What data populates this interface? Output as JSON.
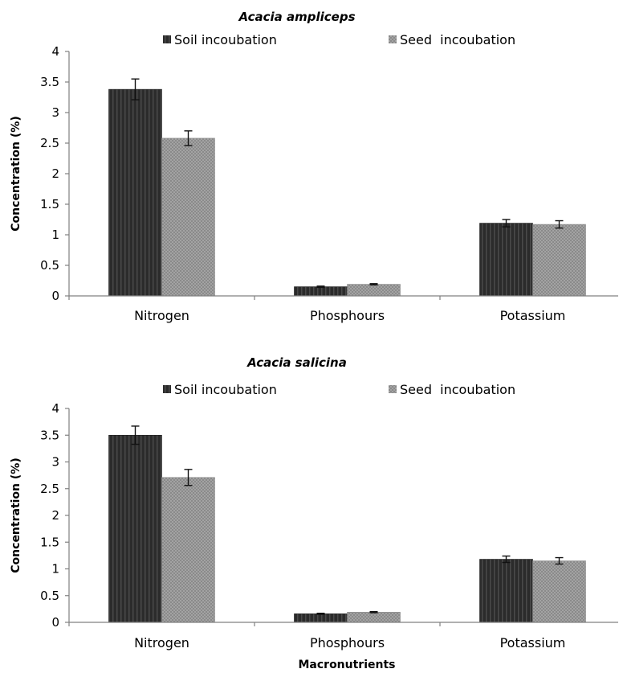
{
  "colors": {
    "soil": "#2b2b2b",
    "seed": "#9a9a9a"
  },
  "chart_data": [
    {
      "type": "bar",
      "title": "Acacia ampliceps",
      "xlabel": "",
      "ylabel": "Concentration (%)",
      "ylim": [
        0,
        4
      ],
      "yticks": [
        "0",
        "0.5",
        "1",
        "1.5",
        "2",
        "2.5",
        "3",
        "3.5",
        "4"
      ],
      "categories": [
        "Nitrogen",
        "Phosphours",
        "Potassium"
      ],
      "legend_position": "top",
      "series": [
        {
          "name": "Soil incoubation",
          "values": [
            3.38,
            0.15,
            1.19
          ],
          "errors": [
            0.17,
            0.01,
            0.06
          ]
        },
        {
          "name": "Seed  incoubation",
          "values": [
            2.58,
            0.19,
            1.17
          ],
          "errors": [
            0.12,
            0.01,
            0.06
          ]
        }
      ]
    },
    {
      "type": "bar",
      "title": "Acacia salicina",
      "xlabel": "Macronutrients",
      "ylabel": "Concentration (%)",
      "ylim": [
        0,
        4
      ],
      "yticks": [
        "0",
        "0.5",
        "1",
        "1.5",
        "2",
        "2.5",
        "3",
        "3.5",
        "4"
      ],
      "categories": [
        "Nitrogen",
        "Phosphours",
        "Potassium"
      ],
      "legend_position": "top",
      "series": [
        {
          "name": "Soil incoubation",
          "values": [
            3.5,
            0.16,
            1.18
          ],
          "errors": [
            0.17,
            0.01,
            0.06
          ]
        },
        {
          "name": "Seed  incoubation",
          "values": [
            2.71,
            0.19,
            1.15
          ],
          "errors": [
            0.15,
            0.01,
            0.06
          ]
        }
      ]
    }
  ]
}
